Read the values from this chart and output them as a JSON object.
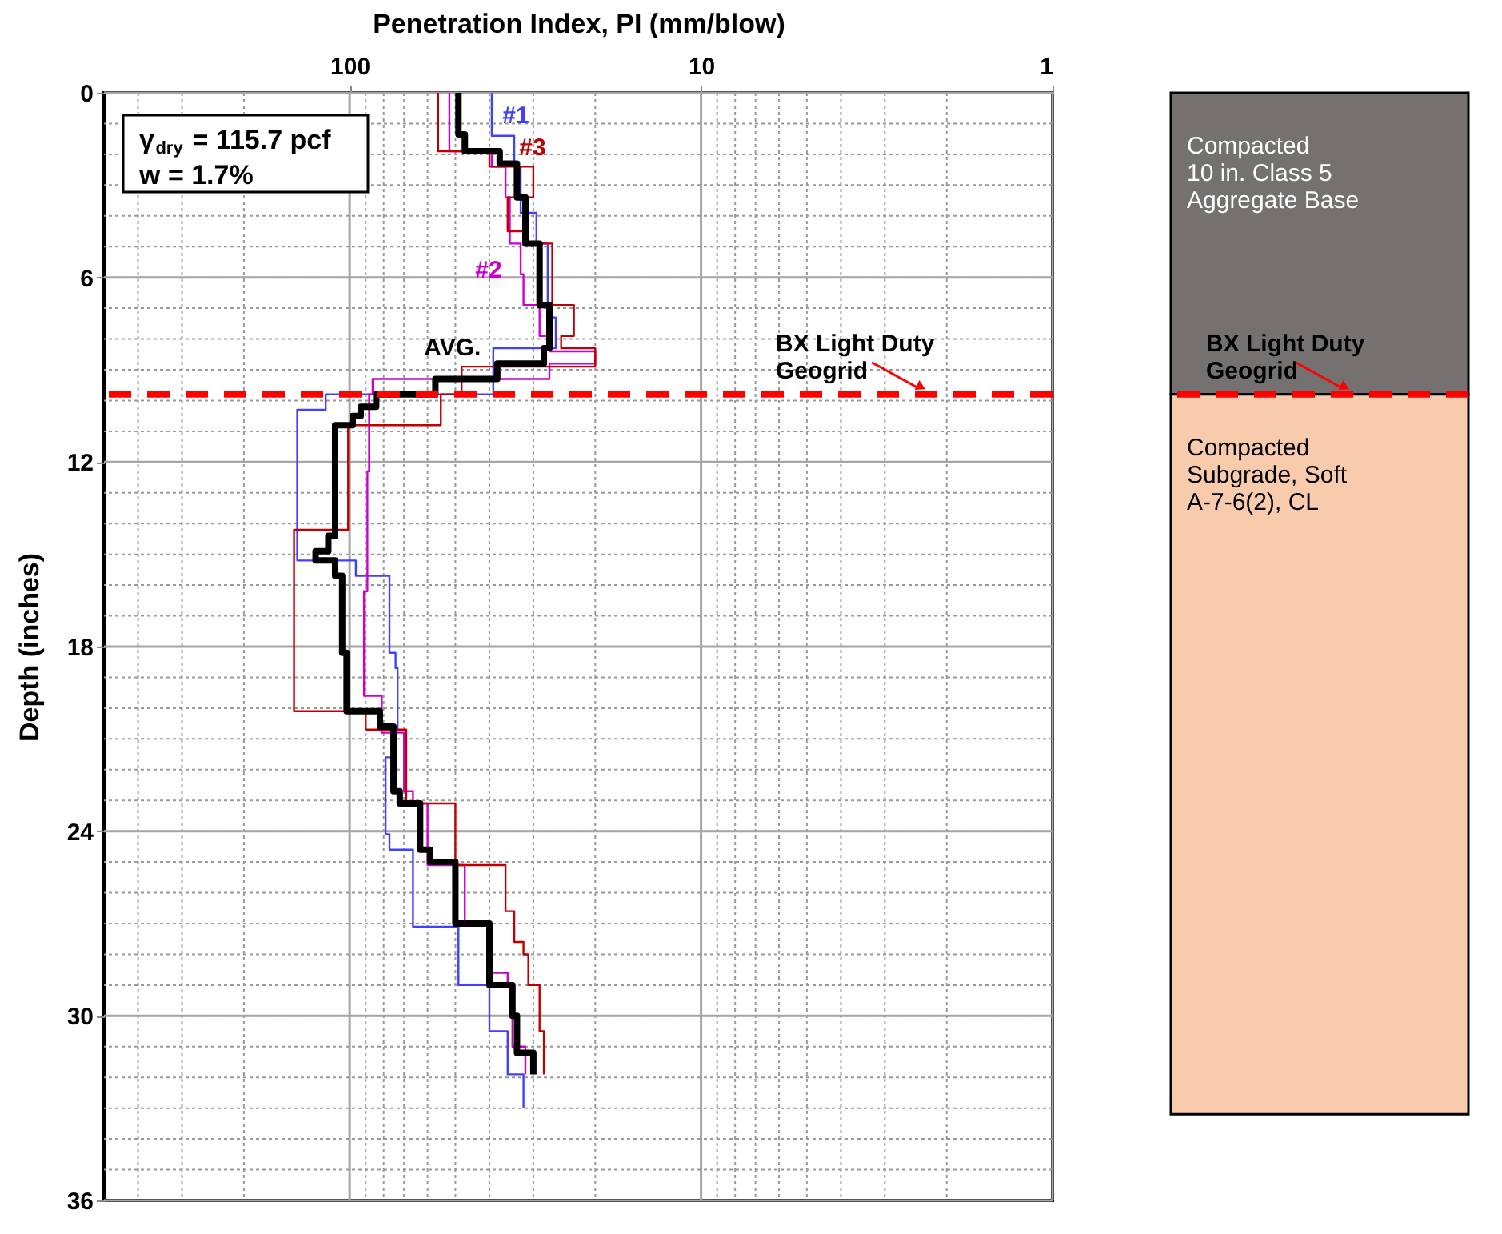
{
  "chart_data": [
    {
      "type": "step",
      "xlabel": "Penetration Index, PI (mm/blow)",
      "ylabel": "Depth (inches)",
      "log": "x",
      "xlim": [
        500,
        1
      ],
      "xticks": [
        100,
        10,
        1
      ],
      "ylim": [
        36,
        0
      ],
      "yticks": [
        0,
        6,
        12,
        18,
        24,
        30,
        36
      ],
      "grid": true,
      "series": [
        {
          "name": "#1",
          "color": "#4040ff",
          "x": [
            39.4,
            39.4,
            34,
            32.6,
            29.4,
            27.3,
            25.9,
            39,
            117,
            141,
            96,
            77,
            74,
            73,
            74,
            79,
            77,
            66,
            49,
            40,
            35.5,
            32
          ],
          "values": [
            0,
            1.4,
            2.4,
            3.9,
            4.9,
            7.3,
            8.3,
            9.8,
            10.3,
            15.2,
            15.7,
            18.2,
            18.7,
            20.7,
            21.6,
            24.1,
            24.6,
            27.1,
            29.0,
            30.5,
            31.9,
            33.0
          ]
        },
        {
          "name": "#2",
          "color": "#cc00cc",
          "x": [
            52,
            52,
            39.4,
            36,
            35,
            32.6,
            32,
            28.8,
            27,
            20,
            27,
            86,
            88,
            89,
            91,
            81,
            70,
            66,
            60,
            47,
            40,
            35.5,
            34.4,
            31.6
          ],
          "values": [
            0,
            1.9,
            2.4,
            3.4,
            4.9,
            5.9,
            6.9,
            7.9,
            8.4,
            8.8,
            9.3,
            9.8,
            12.3,
            16.2,
            19.6,
            20.8,
            22.7,
            23.1,
            25.1,
            27.0,
            28.6,
            29.0,
            31.0,
            31.9
          ]
        },
        {
          "name": "#3",
          "color": "#c00000",
          "x": [
            56,
            56,
            40,
            30,
            35.5,
            32,
            26.5,
            23,
            25,
            20,
            48,
            55,
            101,
            144,
            90,
            69,
            50,
            36,
            34,
            32,
            31,
            28.8,
            28
          ],
          "values": [
            0,
            1.9,
            2.4,
            3.4,
            4.5,
            4.9,
            6.9,
            7.9,
            8.3,
            8.9,
            9.8,
            10.8,
            14.2,
            20.1,
            20.7,
            23.1,
            25.1,
            26.6,
            27.6,
            28.0,
            29.0,
            30.5,
            31.9
          ]
        },
        {
          "name": "AVG.",
          "color": "#000000",
          "x": [
            49,
            49,
            47,
            37.4,
            33.4,
            31.6,
            28.8,
            27,
            28,
            38,
            57,
            84,
            93,
            98,
            110,
            115,
            125,
            110,
            105,
            102,
            82,
            75,
            72,
            63,
            59,
            50,
            40,
            34.4,
            33.4,
            30
          ],
          "values": [
            0,
            1.35,
            1.9,
            2.3,
            3.4,
            4.9,
            6.9,
            8.3,
            8.8,
            9.3,
            9.8,
            10.2,
            10.5,
            10.8,
            14.4,
            14.9,
            15.2,
            15.7,
            18.2,
            20.1,
            20.6,
            22.7,
            23.1,
            24.6,
            25.0,
            27.0,
            29.0,
            30.0,
            31.2,
            31.9
          ]
        }
      ],
      "ref_lines": [
        {
          "axis": "y",
          "value": 9.8,
          "label": "BX Light Duty\nGeogrid",
          "color": "#ff0000",
          "line_style": "dashed"
        }
      ],
      "annotations": [
        "γ$_{dry}$ = 115.7 pcf",
        "w = 1.7%"
      ]
    },
    {
      "type": "bar",
      "stacked": true,
      "categories": [
        null
      ],
      "ylim": [
        36,
        0
      ],
      "tick_labels": false,
      "series": [
        {
          "name": "Compacted\n10 in. Class 5\nAggregate Base",
          "color": "#767171",
          "values": [
            9.8
          ]
        },
        {
          "name": "Compacted\nSubgrade, Soft\nA-7-6(2), CL",
          "color": "#f8cbad",
          "values": [
            23.4
          ]
        }
      ],
      "ref_lines": [
        {
          "axis": "y",
          "value": 9.8,
          "label": "BX Light Duty\nGeogrid",
          "color": "#ff0000",
          "line_style": "dashed"
        }
      ]
    }
  ]
}
